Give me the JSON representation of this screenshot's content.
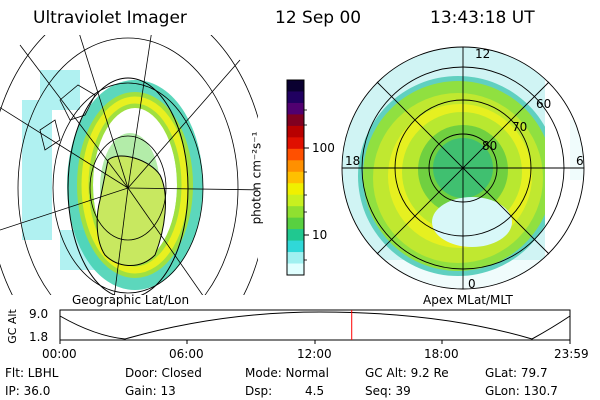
{
  "header": {
    "instrument": "Ultraviolet Imager",
    "date": "12 Sep 00",
    "time": "13:43:18 UT"
  },
  "left_panel": {
    "caption": "Geographic Lat/Lon"
  },
  "right_panel": {
    "caption": "Apex MLat/MLT",
    "mlt_labels": [
      "12",
      "18",
      "6",
      "0"
    ],
    "lat_labels": [
      "60",
      "70",
      "80"
    ]
  },
  "colorbar": {
    "unit_label": "photon cm⁻²s⁻¹",
    "ticks": [
      "100",
      "10"
    ],
    "colors": [
      "#0a0030",
      "#200060",
      "#500070",
      "#800020",
      "#b80000",
      "#e01000",
      "#ff5000",
      "#ff9000",
      "#ffc000",
      "#f0f000",
      "#c8f020",
      "#90e030",
      "#58d040",
      "#20c890",
      "#30d8d8",
      "#a0f0f0",
      "#e0ffff"
    ]
  },
  "altitude_plot": {
    "ylabel": "GC Alt",
    "y_ticks": [
      "9.0",
      "1.8"
    ],
    "x_ticks": [
      "00:00",
      "06:00",
      "12:00",
      "18:00",
      "23:59"
    ],
    "current_time_fraction": 0.572,
    "line_color": "#ff0000"
  },
  "info": {
    "row1": {
      "filter": "Flt: LBHL",
      "door": "Door: Closed",
      "mode": "Mode: Normal",
      "gc_alt": "GC Alt: 9.2 Re",
      "glat": "GLat: 79.7"
    },
    "row2": {
      "ip": "IP: 36.0",
      "gain": "Gain: 13",
      "dsp_label": "Dsp:",
      "dsp_value": "4.5",
      "seq": "Seq: 39",
      "glon": "GLon: 130.7"
    }
  }
}
